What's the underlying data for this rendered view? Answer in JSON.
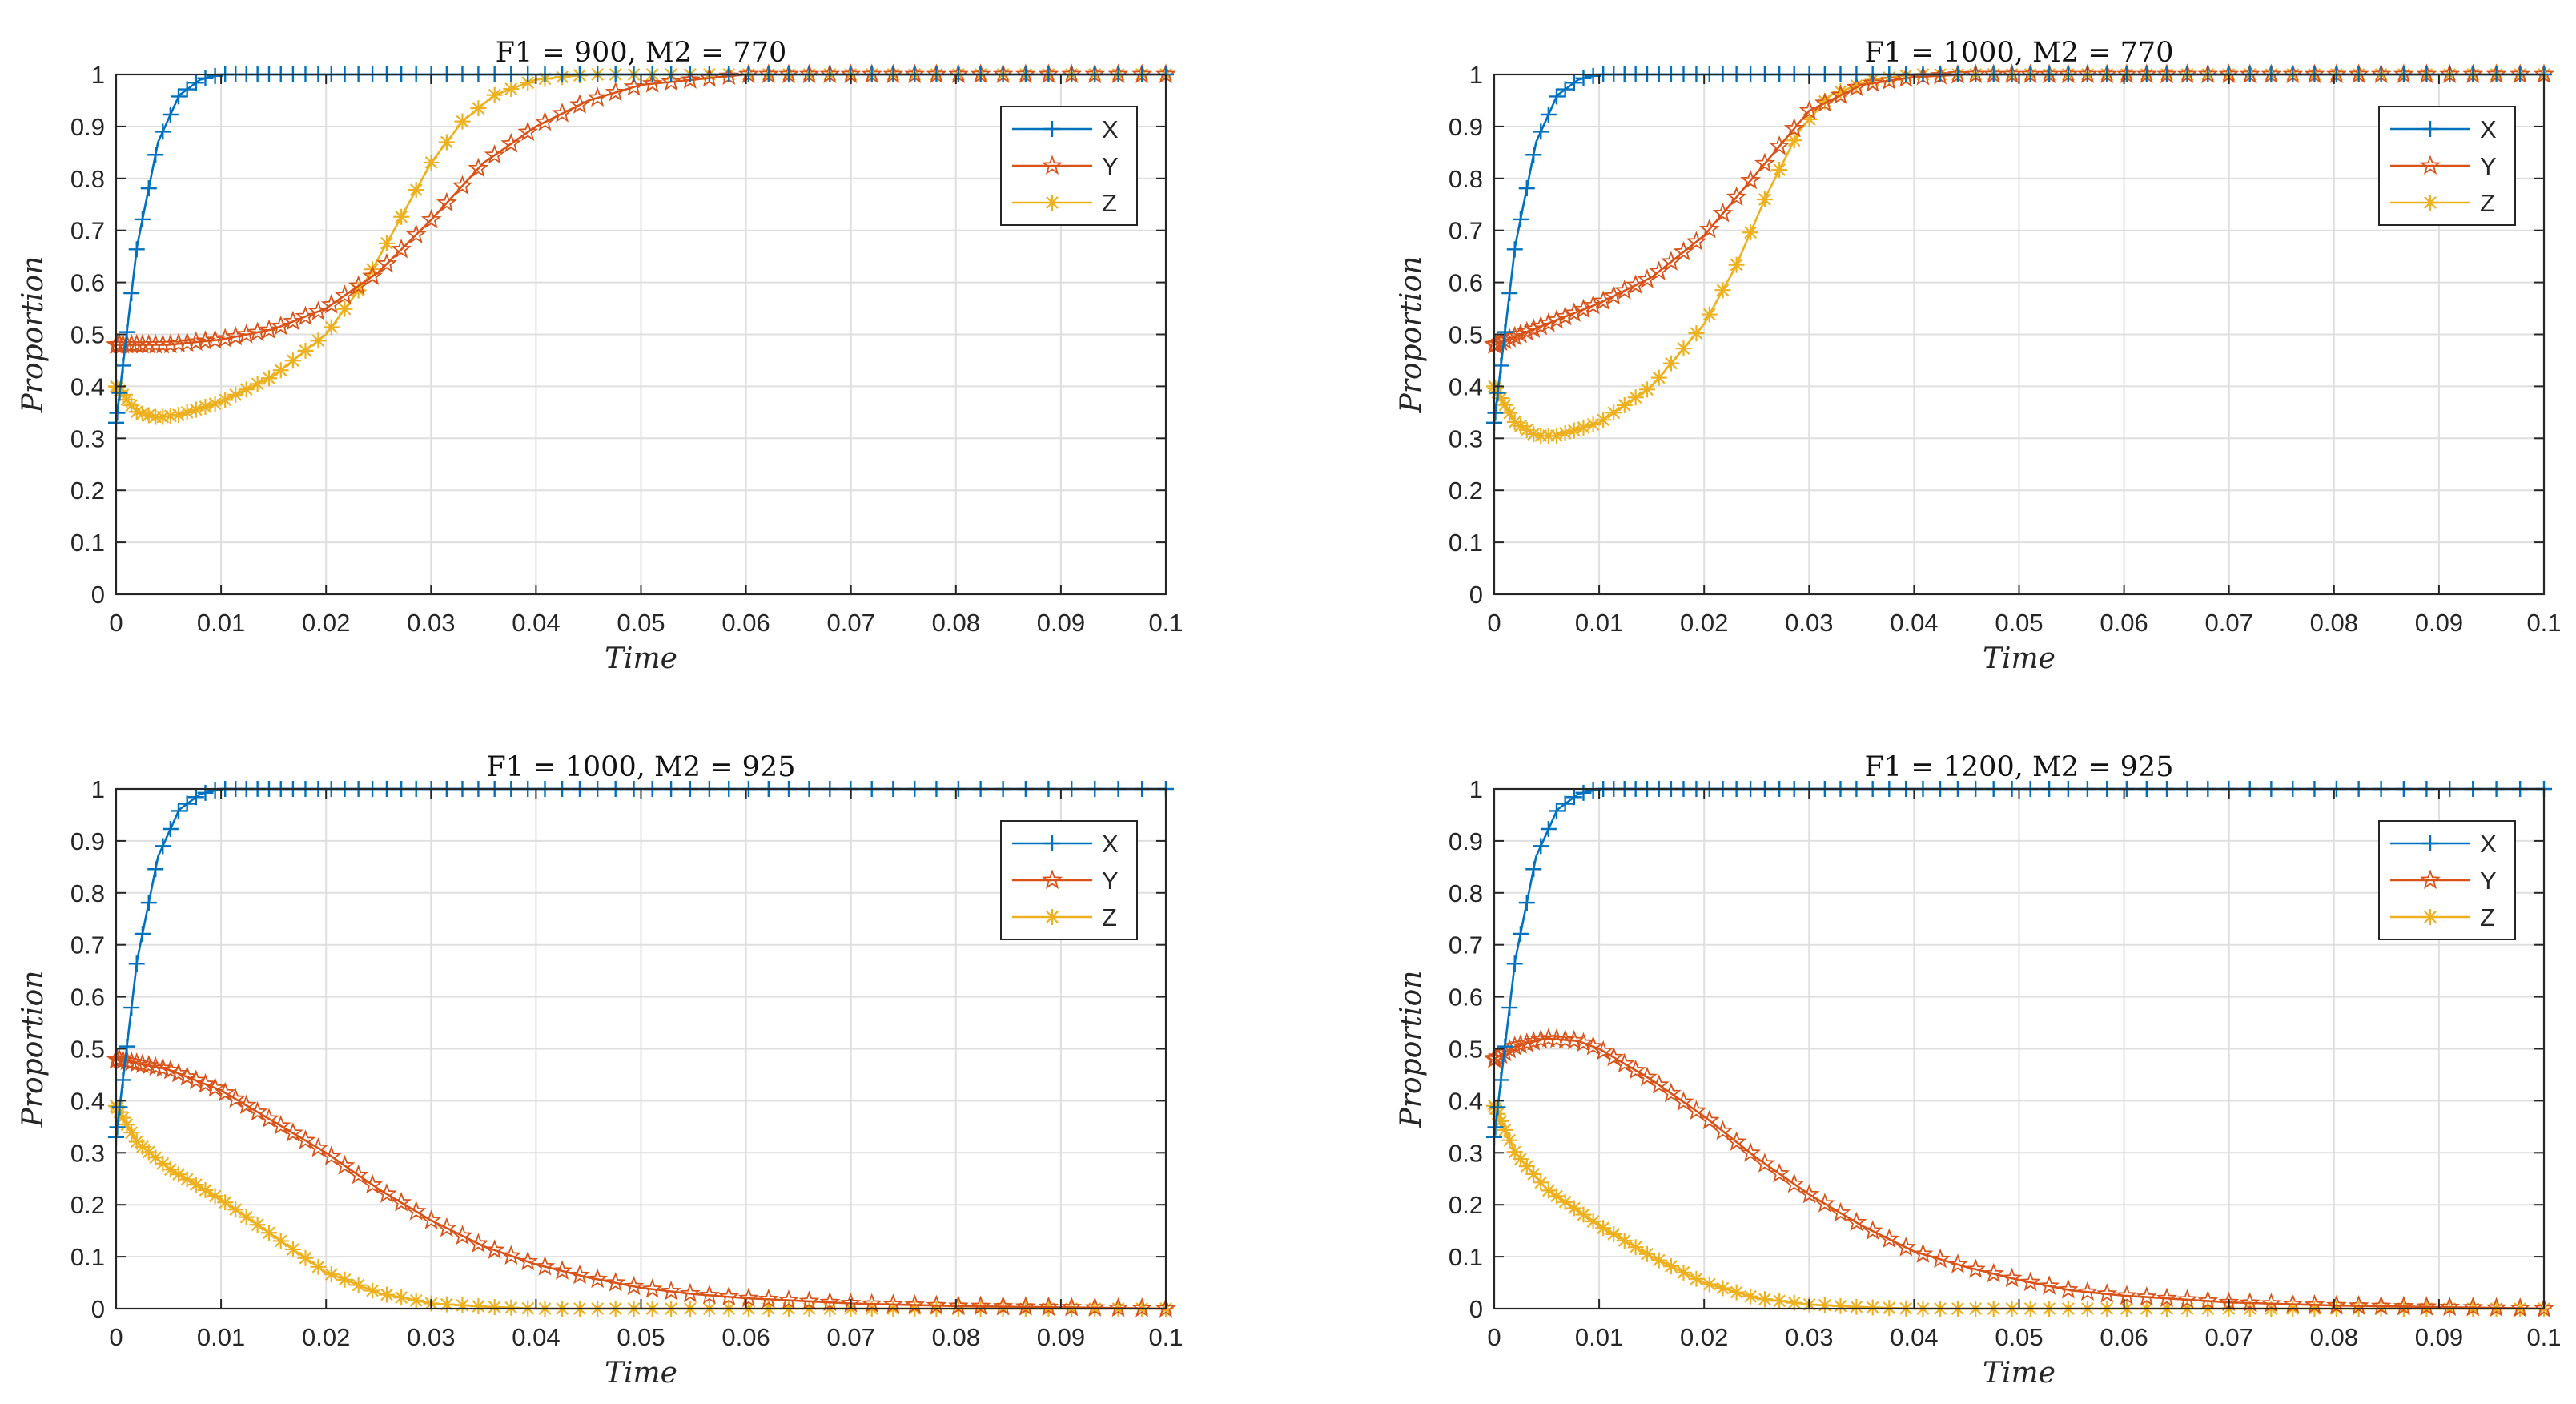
{
  "colors": {
    "X": "#0072BD",
    "Y": "#D95319",
    "Z": "#EDB120"
  },
  "markers": {
    "X": "plus",
    "Y": "pentagram",
    "Z": "asterisk"
  },
  "chart_data": [
    {
      "type": "line",
      "title": "F1 = 900, M2 = 770",
      "xlabel": "Time",
      "ylabel": "Proportion",
      "xlim": [
        0,
        0.1
      ],
      "ylim": [
        0,
        1
      ],
      "xticks": [
        "0",
        "0.01",
        "0.02",
        "0.03",
        "0.04",
        "0.05",
        "0.06",
        "0.07",
        "0.08",
        "0.09",
        "0.1"
      ],
      "yticks": [
        "0",
        "0.1",
        "0.2",
        "0.3",
        "0.4",
        "0.5",
        "0.6",
        "0.7",
        "0.8",
        "0.9",
        "1"
      ],
      "grid": true,
      "legend_position": "top-right",
      "series": [
        {
          "name": "X",
          "x": [
            0,
            0.002,
            0.004,
            0.006,
            0.008,
            0.01,
            0.015,
            0.1
          ],
          "y": [
            0.33,
            0.67,
            0.87,
            0.96,
            0.99,
            1.0,
            1.0,
            1.0
          ]
        },
        {
          "name": "Y",
          "x": [
            0,
            0.005,
            0.01,
            0.015,
            0.02,
            0.025,
            0.03,
            0.035,
            0.04,
            0.045,
            0.05,
            0.055,
            0.06,
            0.1
          ],
          "y": [
            0.48,
            0.48,
            0.49,
            0.51,
            0.55,
            0.62,
            0.72,
            0.83,
            0.9,
            0.95,
            0.98,
            0.99,
            1.0,
            1.0
          ]
        },
        {
          "name": "Z",
          "x": [
            0,
            0.002,
            0.004,
            0.006,
            0.01,
            0.015,
            0.02,
            0.024,
            0.027,
            0.03,
            0.033,
            0.036,
            0.04,
            0.045,
            0.05,
            0.1
          ],
          "y": [
            0.4,
            0.35,
            0.34,
            0.345,
            0.37,
            0.42,
            0.5,
            0.61,
            0.72,
            0.83,
            0.91,
            0.96,
            0.99,
            1.0,
            1.0,
            1.0
          ]
        }
      ]
    },
    {
      "type": "line",
      "title": "F1 = 1000, M2 = 770",
      "xlabel": "Time",
      "ylabel": "Proportion",
      "xlim": [
        0,
        0.1
      ],
      "ylim": [
        0,
        1
      ],
      "xticks": [
        "0",
        "0.01",
        "0.02",
        "0.03",
        "0.04",
        "0.05",
        "0.06",
        "0.07",
        "0.08",
        "0.09",
        "0.1"
      ],
      "yticks": [
        "0",
        "0.1",
        "0.2",
        "0.3",
        "0.4",
        "0.5",
        "0.6",
        "0.7",
        "0.8",
        "0.9",
        "1"
      ],
      "grid": true,
      "legend_position": "top-right",
      "series": [
        {
          "name": "X",
          "x": [
            0,
            0.002,
            0.004,
            0.006,
            0.008,
            0.01,
            0.015,
            0.1
          ],
          "y": [
            0.33,
            0.67,
            0.87,
            0.96,
            0.99,
            1.0,
            1.0,
            1.0
          ]
        },
        {
          "name": "Y",
          "x": [
            0,
            0.005,
            0.01,
            0.015,
            0.02,
            0.025,
            0.03,
            0.035,
            0.04,
            0.045,
            0.05,
            0.1
          ],
          "y": [
            0.48,
            0.52,
            0.56,
            0.61,
            0.69,
            0.81,
            0.93,
            0.98,
            0.995,
            1.0,
            1.0,
            1.0
          ]
        },
        {
          "name": "Z",
          "x": [
            0,
            0.002,
            0.004,
            0.006,
            0.01,
            0.015,
            0.02,
            0.023,
            0.026,
            0.029,
            0.032,
            0.036,
            0.04,
            0.045,
            0.1
          ],
          "y": [
            0.4,
            0.33,
            0.305,
            0.305,
            0.33,
            0.4,
            0.52,
            0.63,
            0.77,
            0.89,
            0.96,
            0.99,
            1.0,
            1.0,
            1.0
          ]
        }
      ]
    },
    {
      "type": "line",
      "title": "F1 = 1000, M2 = 925",
      "xlabel": "Time",
      "ylabel": "Proportion",
      "xlim": [
        0,
        0.1
      ],
      "ylim": [
        0,
        1
      ],
      "xticks": [
        "0",
        "0.01",
        "0.02",
        "0.03",
        "0.04",
        "0.05",
        "0.06",
        "0.07",
        "0.08",
        "0.09",
        "0.1"
      ],
      "yticks": [
        "0",
        "0.1",
        "0.2",
        "0.3",
        "0.4",
        "0.5",
        "0.6",
        "0.7",
        "0.8",
        "0.9",
        "1"
      ],
      "grid": true,
      "legend_position": "top-right",
      "series": [
        {
          "name": "X",
          "x": [
            0,
            0.002,
            0.004,
            0.006,
            0.008,
            0.01,
            0.015,
            0.1
          ],
          "y": [
            0.33,
            0.67,
            0.87,
            0.96,
            0.99,
            1.0,
            1.0,
            1.0
          ]
        },
        {
          "name": "Y",
          "x": [
            0,
            0.005,
            0.01,
            0.015,
            0.02,
            0.025,
            0.03,
            0.035,
            0.04,
            0.045,
            0.05,
            0.055,
            0.06,
            0.07,
            0.08,
            0.1
          ],
          "y": [
            0.48,
            0.46,
            0.42,
            0.36,
            0.3,
            0.23,
            0.17,
            0.12,
            0.085,
            0.06,
            0.04,
            0.028,
            0.02,
            0.01,
            0.005,
            0.0
          ]
        },
        {
          "name": "Z",
          "x": [
            0,
            0.002,
            0.005,
            0.01,
            0.015,
            0.02,
            0.025,
            0.03,
            0.035,
            0.04,
            0.05,
            0.1
          ],
          "y": [
            0.39,
            0.32,
            0.27,
            0.21,
            0.14,
            0.07,
            0.03,
            0.01,
            0.004,
            0.0,
            0.0,
            0.0
          ]
        }
      ]
    },
    {
      "type": "line",
      "title": "F1 = 1200, M2 = 925",
      "xlabel": "Time",
      "ylabel": "Proportion",
      "xlim": [
        0,
        0.1
      ],
      "ylim": [
        0,
        1
      ],
      "xticks": [
        "0",
        "0.01",
        "0.02",
        "0.03",
        "0.04",
        "0.05",
        "0.06",
        "0.07",
        "0.08",
        "0.09",
        "0.1"
      ],
      "yticks": [
        "0",
        "0.1",
        "0.2",
        "0.3",
        "0.4",
        "0.5",
        "0.6",
        "0.7",
        "0.8",
        "0.9",
        "1"
      ],
      "grid": true,
      "legend_position": "top-right",
      "series": [
        {
          "name": "X",
          "x": [
            0,
            0.002,
            0.004,
            0.006,
            0.008,
            0.01,
            0.015,
            0.1
          ],
          "y": [
            0.33,
            0.67,
            0.87,
            0.96,
            0.99,
            1.0,
            1.0,
            1.0
          ]
        },
        {
          "name": "Y",
          "x": [
            0,
            0.002,
            0.005,
            0.008,
            0.01,
            0.015,
            0.02,
            0.025,
            0.03,
            0.035,
            0.04,
            0.045,
            0.05,
            0.055,
            0.06,
            0.07,
            0.08,
            0.09,
            0.1
          ],
          "y": [
            0.48,
            0.505,
            0.52,
            0.515,
            0.5,
            0.44,
            0.37,
            0.29,
            0.22,
            0.16,
            0.11,
            0.08,
            0.055,
            0.035,
            0.025,
            0.012,
            0.006,
            0.003,
            0.0
          ]
        },
        {
          "name": "Z",
          "x": [
            0,
            0.002,
            0.005,
            0.01,
            0.015,
            0.02,
            0.025,
            0.03,
            0.035,
            0.04,
            0.05,
            0.1
          ],
          "y": [
            0.39,
            0.3,
            0.23,
            0.16,
            0.1,
            0.05,
            0.02,
            0.008,
            0.003,
            0.0,
            0.0,
            0.0
          ]
        }
      ]
    }
  ]
}
